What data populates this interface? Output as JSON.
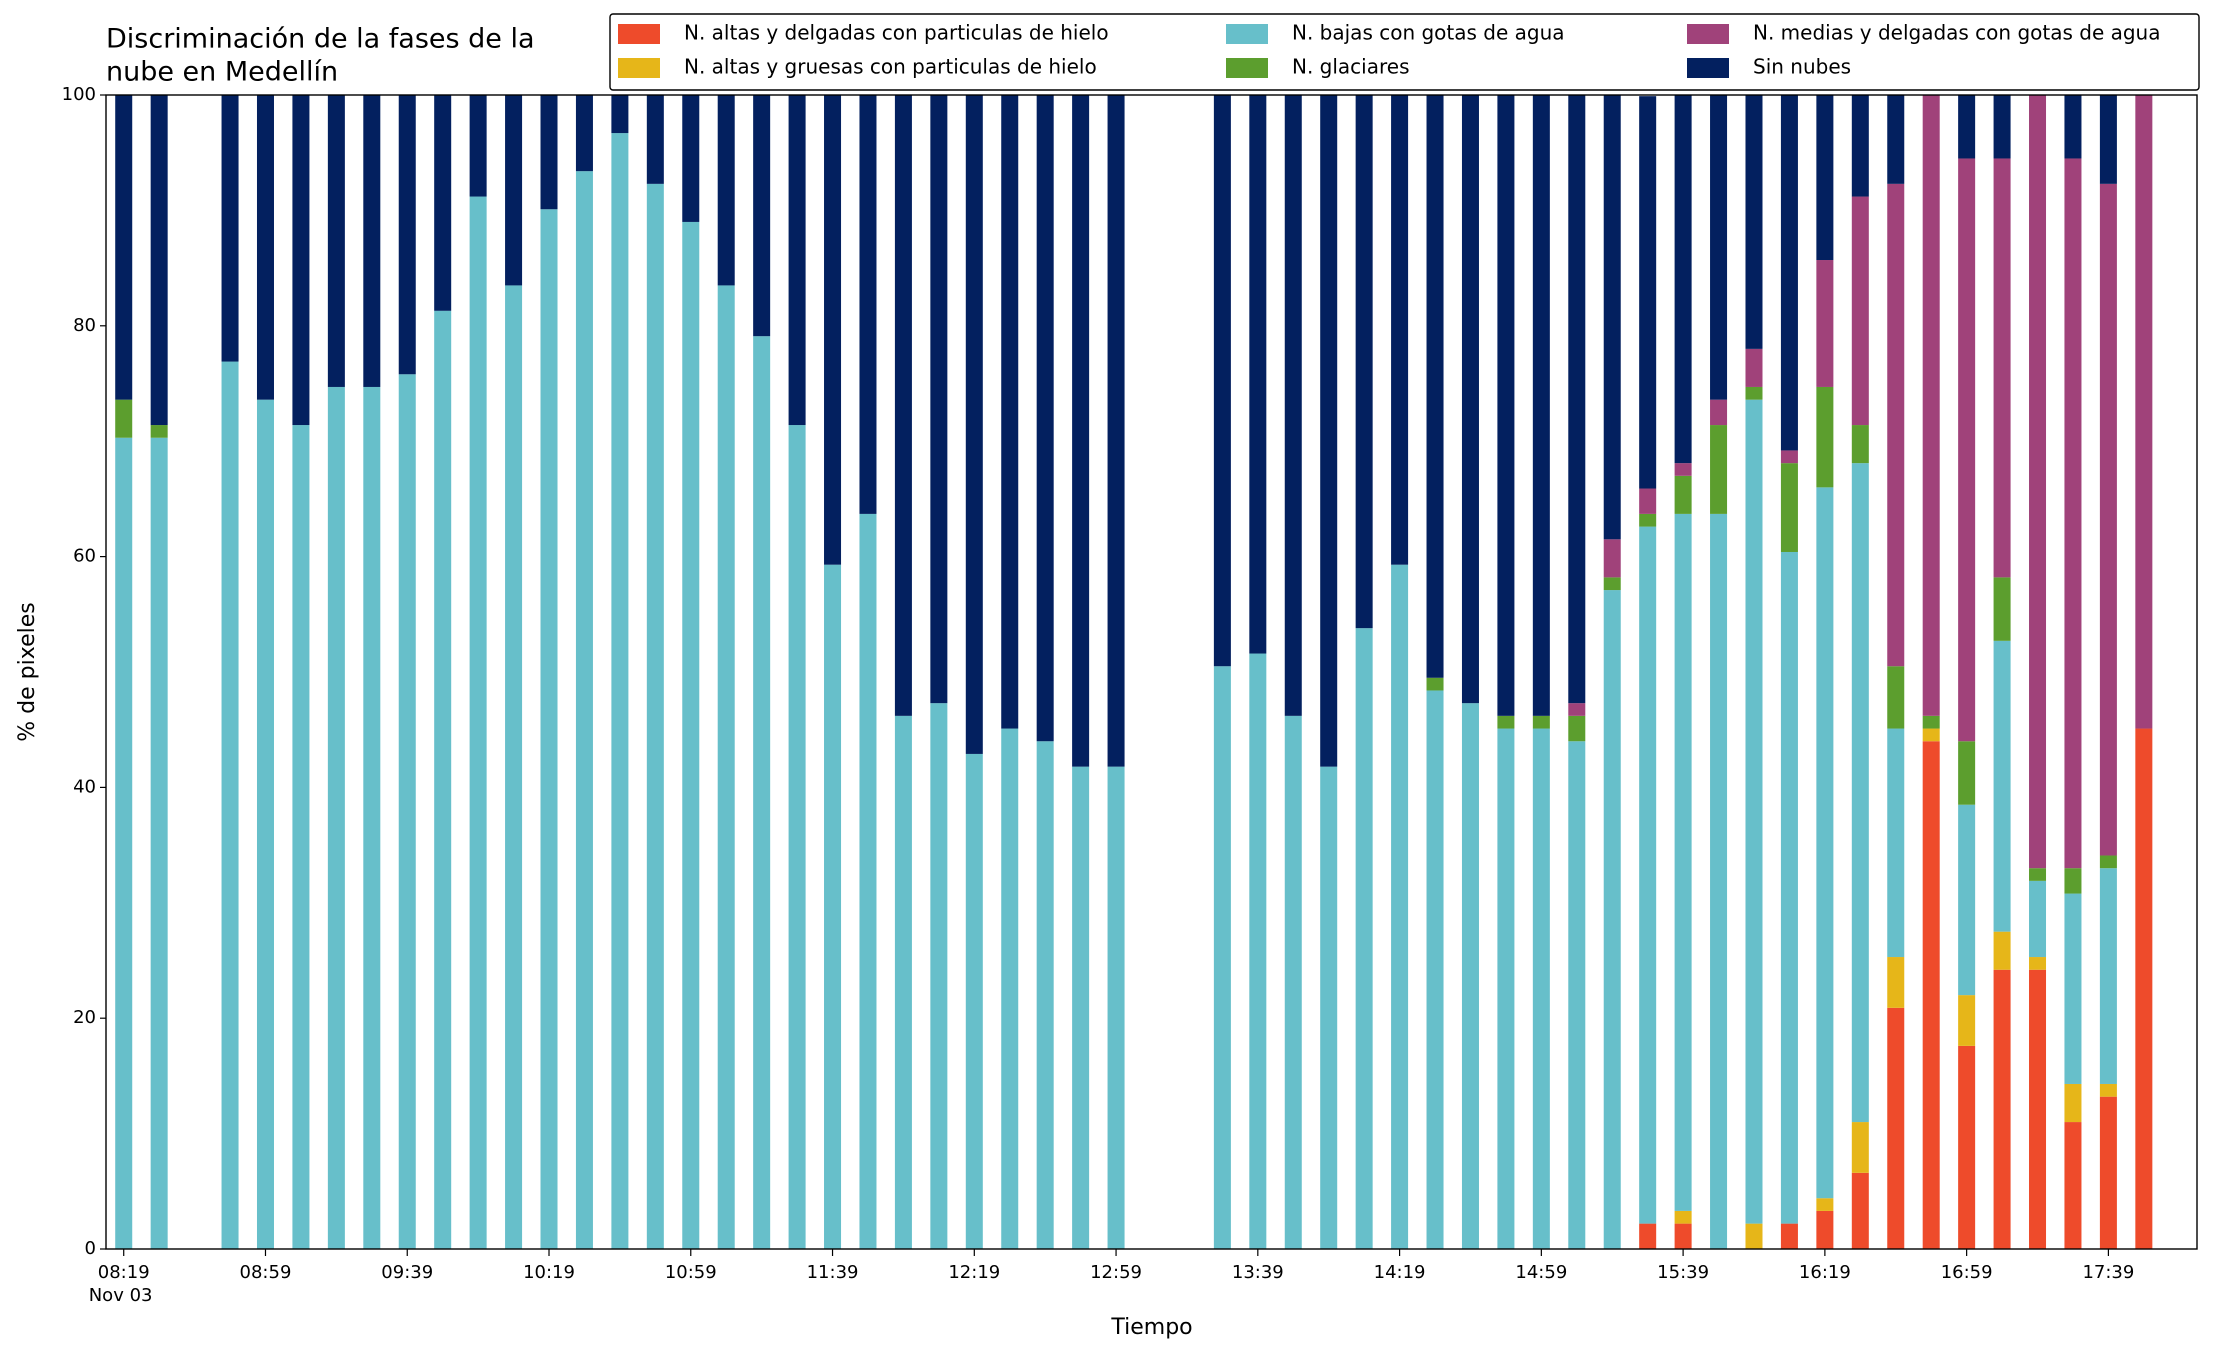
{
  "chart_data": {
    "type": "stacked_bar",
    "title": [
      "Discriminación de la fases de la",
      "nube en Medellín"
    ],
    "xlabel": "Tiempo",
    "ylabel": "% de pixeles",
    "x_axis_date": "Nov 03",
    "legend": "upper right",
    "x": [
      "08:19",
      "08:29",
      "08:49",
      "08:59",
      "09:09",
      "09:19",
      "09:29",
      "09:39",
      "09:49",
      "09:59",
      "10:09",
      "10:19",
      "10:29",
      "10:39",
      "10:49",
      "10:59",
      "11:09",
      "11:19",
      "11:29",
      "11:39",
      "11:49",
      "11:59",
      "12:09",
      "12:19",
      "12:29",
      "12:39",
      "12:49",
      "12:59",
      "13:29",
      "13:39",
      "13:49",
      "13:59",
      "14:09",
      "14:19",
      "14:29",
      "14:39",
      "14:49",
      "14:59",
      "15:09",
      "15:19",
      "15:29",
      "15:39",
      "15:49",
      "15:59",
      "16:09",
      "16:19",
      "16:29",
      "16:39",
      "16:49",
      "16:59",
      "17:09",
      "17:19",
      "17:29",
      "17:39",
      "17:49"
    ],
    "xlim": [
      "08:14",
      "18:04"
    ],
    "xticks": [
      "08:19",
      "08:59",
      "09:39",
      "10:19",
      "10:59",
      "11:39",
      "12:19",
      "12:59",
      "13:39",
      "14:19",
      "14:59",
      "15:39",
      "16:19",
      "16:59",
      "17:39"
    ],
    "ylim": [
      0,
      100
    ],
    "yticks": [
      0,
      20,
      40,
      60,
      80,
      100
    ],
    "grid": false,
    "series": [
      {
        "name": "N. altas y delgadas con particulas de hielo",
        "color": "#ee4b2b",
        "values": [
          0,
          0,
          0,
          0,
          0,
          0,
          0,
          0,
          0,
          0,
          0,
          0,
          0,
          0,
          0,
          0,
          0,
          0,
          0,
          0,
          0,
          0,
          0,
          0,
          0,
          0,
          0,
          0,
          0,
          0,
          0,
          0,
          0,
          0,
          0,
          0,
          0,
          0,
          0,
          0,
          2.2,
          2.2,
          0,
          0,
          2.2,
          3.3,
          6.6,
          20.9,
          44.0,
          17.6,
          24.2,
          24.2,
          11.0,
          13.2,
          45.1
        ]
      },
      {
        "name": "N. altas y gruesas con particulas de hielo",
        "color": "#e6b619",
        "values": [
          0,
          0,
          0,
          0,
          0,
          0,
          0,
          0,
          0,
          0,
          0,
          0,
          0,
          0,
          0,
          0,
          0,
          0,
          0,
          0,
          0,
          0,
          0,
          0,
          0,
          0,
          0,
          0,
          0,
          0,
          0,
          0,
          0,
          0,
          0,
          0,
          0,
          0,
          0,
          0,
          0,
          1.1,
          0,
          2.2,
          0,
          1.1,
          4.4,
          4.4,
          1.1,
          4.4,
          3.3,
          1.1,
          3.3,
          1.1,
          0
        ]
      },
      {
        "name": "N. bajas con gotas de agua",
        "color": "#67bfca",
        "values": [
          70.3,
          70.3,
          76.9,
          73.6,
          71.4,
          74.7,
          74.7,
          75.8,
          81.3,
          91.2,
          83.5,
          90.1,
          93.4,
          96.7,
          92.3,
          89.0,
          83.5,
          79.1,
          71.4,
          59.3,
          63.7,
          46.2,
          47.3,
          42.9,
          45.1,
          44.0,
          41.8,
          41.8,
          50.5,
          51.6,
          46.2,
          41.8,
          53.8,
          59.3,
          48.4,
          47.3,
          45.1,
          45.1,
          44.0,
          57.1,
          60.4,
          60.4,
          63.7,
          71.4,
          58.2,
          61.6,
          57.1,
          19.8,
          0,
          16.5,
          25.2,
          6.6,
          16.5,
          18.7,
          0
        ]
      },
      {
        "name": "N. glaciares",
        "color": "#5c9e2e",
        "values": [
          3.3,
          1.1,
          0,
          0,
          0,
          0,
          0,
          0,
          0,
          0,
          0,
          0,
          0,
          0,
          0,
          0,
          0,
          0,
          0,
          0,
          0,
          0,
          0,
          0,
          0,
          0,
          0,
          0,
          0,
          0,
          0,
          0,
          0,
          0,
          1.1,
          0,
          1.1,
          1.1,
          2.2,
          1.1,
          1.1,
          3.3,
          7.7,
          1.1,
          7.7,
          8.7,
          3.3,
          5.4,
          1.1,
          5.5,
          5.5,
          1.1,
          2.2,
          1.1,
          0
        ]
      },
      {
        "name": "N. medias y delgadas con gotas de agua",
        "color": "#a0427a",
        "values": [
          0,
          0,
          0,
          0,
          0,
          0,
          0,
          0,
          0,
          0,
          0,
          0,
          0,
          0,
          0,
          0,
          0,
          0,
          0,
          0,
          0,
          0,
          0,
          0,
          0,
          0,
          0,
          0,
          0,
          0,
          0,
          0,
          0,
          0,
          0,
          0,
          0,
          0,
          1.1,
          3.3,
          2.2,
          1.1,
          2.2,
          3.3,
          1.1,
          11.0,
          19.8,
          41.8,
          53.8,
          50.5,
          36.3,
          67.0,
          61.5,
          58.2,
          54.9
        ]
      },
      {
        "name": "Sin nubes",
        "color": "#03205f",
        "values": [
          26.4,
          28.6,
          23.1,
          26.4,
          28.6,
          25.3,
          25.3,
          24.2,
          18.7,
          8.8,
          16.5,
          9.9,
          6.6,
          3.3,
          7.7,
          11.0,
          16.5,
          20.9,
          28.6,
          40.7,
          36.3,
          53.8,
          52.7,
          57.1,
          54.9,
          56.0,
          58.2,
          58.2,
          49.5,
          48.4,
          53.8,
          58.2,
          46.2,
          40.7,
          50.5,
          52.7,
          53.8,
          53.8,
          52.7,
          38.5,
          34.0,
          31.9,
          26.4,
          22.0,
          30.8,
          14.3,
          8.8,
          7.7,
          0,
          5.5,
          5.5,
          0,
          5.5,
          7.7,
          0
        ]
      }
    ]
  }
}
